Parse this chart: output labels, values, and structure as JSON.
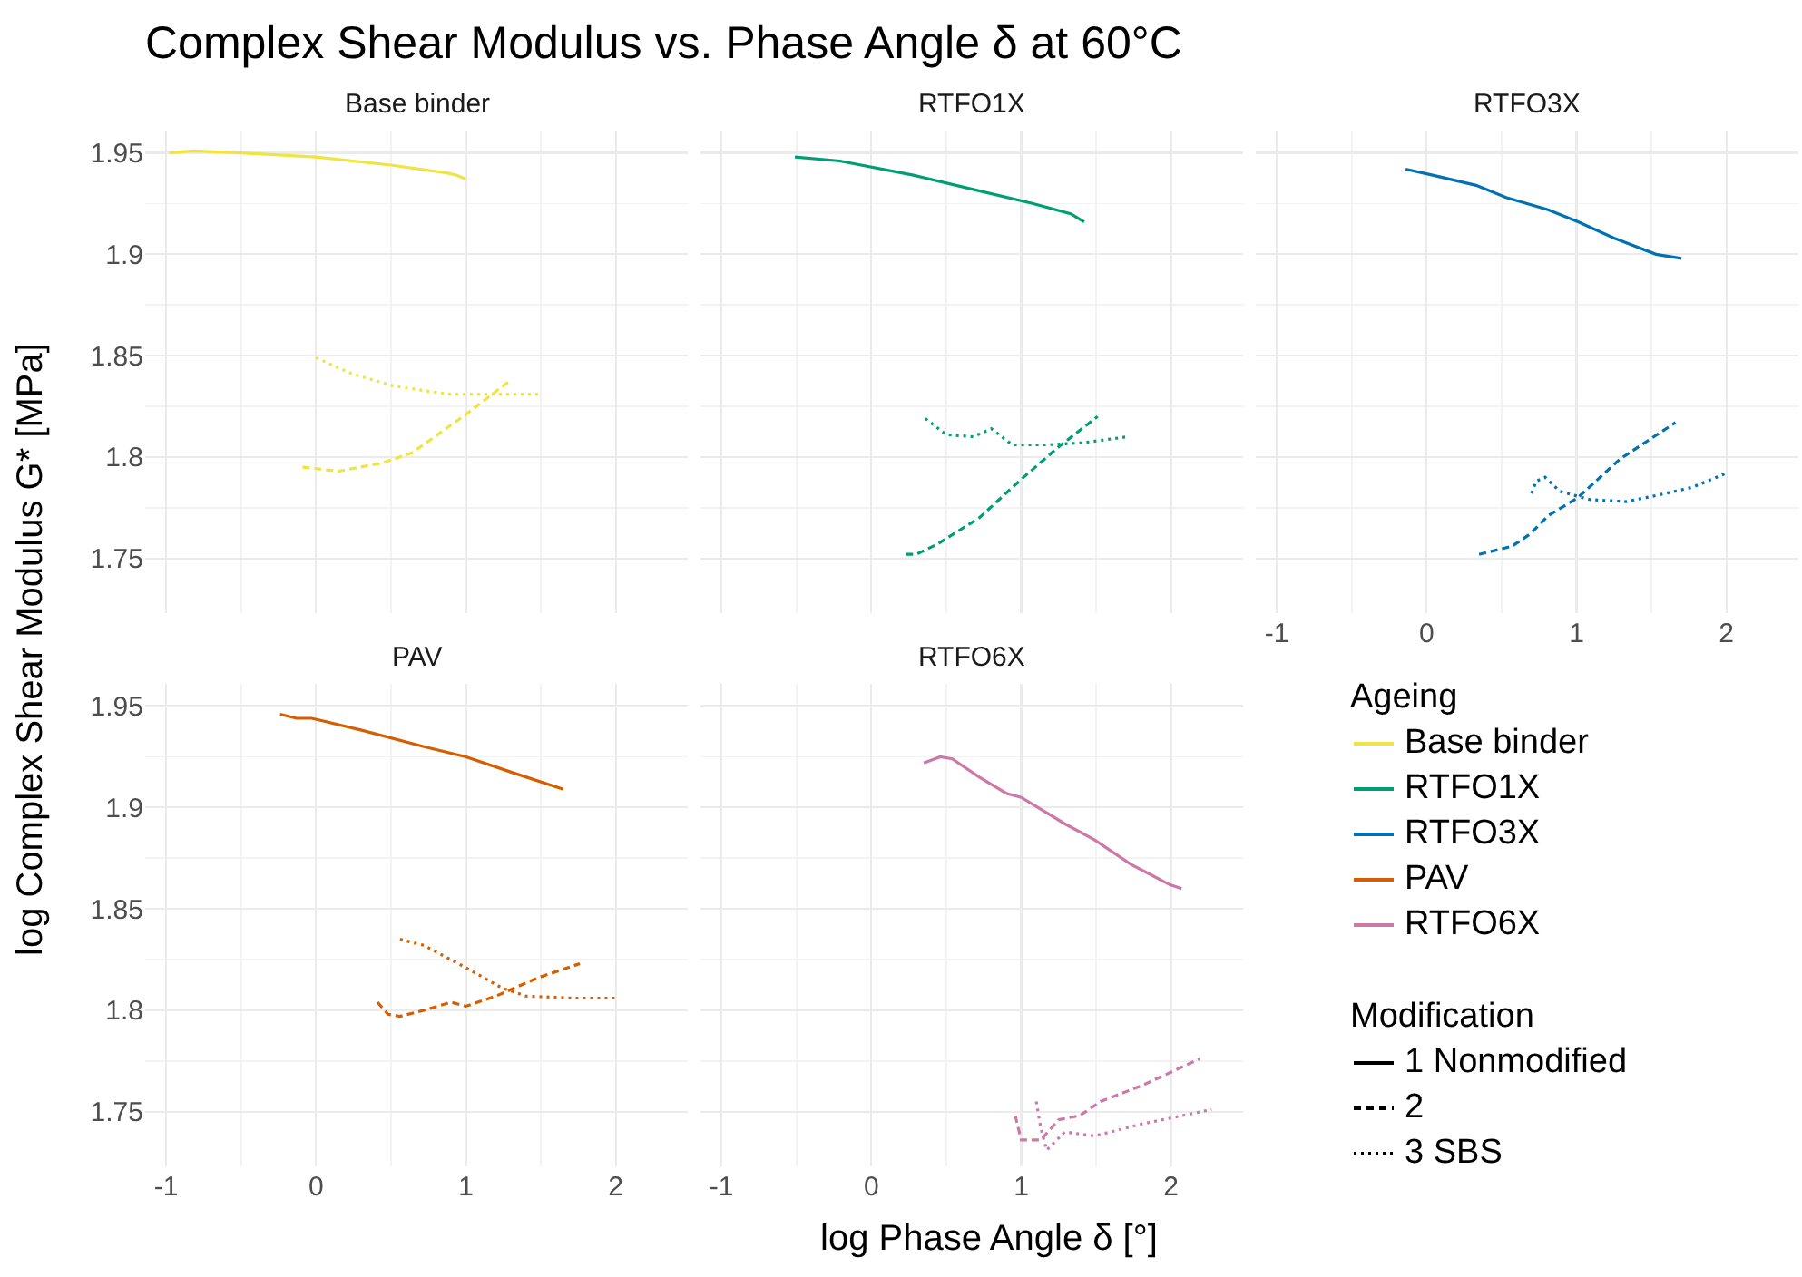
{
  "chart_data": [
    {
      "type": "line",
      "title": "Base binder",
      "xlabel": "log Phase Angle δ [°]",
      "ylabel": "log Complex Shear Modulus G* [MPa]",
      "annotations": [
        "Complex Shear Modulus vs. Phase Angle δ at 60°C"
      ],
      "xlim": [
        -1.14,
        2.48
      ],
      "ylim": [
        1.723,
        1.961
      ],
      "xticks": [
        -1,
        0,
        1,
        2
      ],
      "yticks": [
        1.75,
        1.8,
        1.85,
        1.9,
        1.95
      ],
      "grid": true,
      "tick_labels": "y",
      "series": [
        {
          "color": "#f0e442",
          "line_style": "solid",
          "x": [
            -0.98,
            -0.82,
            -0.5,
            0,
            0.5,
            0.88,
            0.94,
            1.0
          ],
          "values": [
            1.95,
            1.951,
            1.95,
            1.948,
            1.944,
            1.94,
            1.939,
            1.937
          ]
        },
        {
          "color": "#f0e442",
          "line_style": "dashed",
          "x": [
            -0.09,
            0.15,
            0.44,
            0.64,
            1.0,
            1.3
          ],
          "values": [
            1.795,
            1.793,
            1.797,
            1.802,
            1.821,
            1.838
          ]
        },
        {
          "color": "#f0e442",
          "line_style": "dotted",
          "x": [
            0,
            0.24,
            0.52,
            0.88,
            1.2,
            1.5
          ],
          "values": [
            1.849,
            1.841,
            1.835,
            1.831,
            1.831,
            1.831
          ]
        }
      ]
    },
    {
      "type": "line",
      "title": "RTFO1X",
      "xlim": [
        -1.14,
        2.48
      ],
      "ylim": [
        1.723,
        1.961
      ],
      "xticks": [
        -1,
        0,
        1,
        2
      ],
      "yticks": [
        1.75,
        1.8,
        1.85,
        1.9,
        1.95
      ],
      "grid": true,
      "tick_labels": false,
      "series": [
        {
          "color": "#009e73",
          "line_style": "solid",
          "x": [
            -0.51,
            -0.21,
            0.28,
            0.68,
            1.08,
            1.33,
            1.42
          ],
          "values": [
            1.948,
            1.946,
            1.939,
            1.932,
            1.925,
            1.92,
            1.916
          ]
        },
        {
          "color": "#009e73",
          "line_style": "dashed",
          "x": [
            0.23,
            0.3,
            0.44,
            0.72,
            1.0,
            1.25,
            1.51
          ],
          "values": [
            1.752,
            1.752,
            1.757,
            1.77,
            1.789,
            1.805,
            1.82
          ]
        },
        {
          "color": "#009e73",
          "line_style": "dotted",
          "x": [
            0.36,
            0.5,
            0.68,
            0.8,
            0.94,
            1.17,
            1.41,
            1.71
          ],
          "values": [
            1.819,
            1.811,
            1.81,
            1.814,
            1.806,
            1.806,
            1.807,
            1.81
          ]
        }
      ]
    },
    {
      "type": "line",
      "title": "RTFO3X",
      "xlim": [
        -1.14,
        2.48
      ],
      "ylim": [
        1.723,
        1.961
      ],
      "xticks": [
        -1,
        0,
        1,
        2
      ],
      "yticks": [
        1.75,
        1.8,
        1.85,
        1.9,
        1.95
      ],
      "grid": true,
      "tick_labels": "x",
      "series": [
        {
          "color": "#0072b2",
          "line_style": "solid",
          "x": [
            -0.14,
            0.04,
            0.33,
            0.53,
            0.81,
            1.01,
            1.25,
            1.53,
            1.7
          ],
          "values": [
            1.942,
            1.939,
            1.934,
            1.928,
            1.922,
            1.916,
            1.908,
            1.9,
            1.898
          ]
        },
        {
          "color": "#0072b2",
          "line_style": "dashed",
          "x": [
            0.35,
            0.57,
            0.69,
            0.81,
            1.01,
            1.29,
            1.66
          ],
          "values": [
            1.752,
            1.756,
            1.762,
            1.771,
            1.78,
            1.799,
            1.817
          ]
        },
        {
          "color": "#0072b2",
          "line_style": "dotted",
          "x": [
            0.7,
            0.73,
            0.79,
            0.89,
            1.09,
            1.33,
            1.53,
            1.77,
            2.0
          ],
          "values": [
            1.782,
            1.788,
            1.79,
            1.783,
            1.779,
            1.778,
            1.781,
            1.785,
            1.792
          ]
        }
      ]
    },
    {
      "type": "line",
      "title": "PAV",
      "xlim": [
        -1.14,
        2.48
      ],
      "ylim": [
        1.723,
        1.961
      ],
      "xticks": [
        -1,
        0,
        1,
        2
      ],
      "yticks": [
        1.75,
        1.8,
        1.85,
        1.9,
        1.95
      ],
      "grid": true,
      "series": [
        {
          "color": "#d55e00",
          "line_style": "solid",
          "x": [
            -0.24,
            -0.13,
            -0.03,
            0.03,
            0.31,
            0.72,
            1.0,
            1.32,
            1.65
          ],
          "values": [
            1.946,
            1.944,
            1.944,
            1.943,
            1.938,
            1.93,
            1.925,
            1.917,
            1.909
          ]
        },
        {
          "color": "#d55e00",
          "line_style": "dashed",
          "x": [
            0.41,
            0.48,
            0.56,
            0.72,
            0.9,
            1.0,
            1.2,
            1.48,
            1.76
          ],
          "values": [
            1.804,
            1.798,
            1.797,
            1.8,
            1.804,
            1.802,
            1.807,
            1.816,
            1.823
          ]
        },
        {
          "color": "#d55e00",
          "line_style": "dotted",
          "x": [
            0.56,
            0.72,
            1.0,
            1.24,
            1.4,
            1.72,
            2.0
          ],
          "values": [
            1.835,
            1.832,
            1.821,
            1.811,
            1.807,
            1.806,
            1.806
          ]
        }
      ]
    },
    {
      "type": "line",
      "title": "RTFO6X",
      "xlim": [
        -1.14,
        2.48
      ],
      "ylim": [
        1.723,
        1.961
      ],
      "xticks": [
        -1,
        0,
        1,
        2
      ],
      "yticks": [
        1.75,
        1.8,
        1.85,
        1.9,
        1.95
      ],
      "grid": true,
      "tick_labels": "x",
      "series": [
        {
          "color": "#cc79a7",
          "line_style": "solid",
          "x": [
            0.35,
            0.46,
            0.54,
            0.72,
            0.9,
            1.0,
            1.29,
            1.49,
            1.73,
            1.99,
            2.07
          ],
          "values": [
            1.922,
            1.925,
            1.924,
            1.915,
            1.907,
            1.905,
            1.892,
            1.884,
            1.872,
            1.862,
            1.86
          ]
        },
        {
          "color": "#cc79a7",
          "line_style": "dashed",
          "x": [
            0.96,
            1.0,
            1.13,
            1.25,
            1.39,
            1.53,
            1.81,
            2.19
          ],
          "values": [
            1.748,
            1.736,
            1.736,
            1.746,
            1.748,
            1.755,
            1.763,
            1.776
          ]
        },
        {
          "color": "#cc79a7",
          "line_style": "dotted",
          "x": [
            1.1,
            1.13,
            1.17,
            1.29,
            1.49,
            1.81,
            2.27
          ],
          "values": [
            1.755,
            1.742,
            1.731,
            1.74,
            1.738,
            1.744,
            1.751
          ]
        }
      ]
    },
    {
      "type": "other",
      "annotations": [
        "Ageing",
        "Base binder",
        "RTFO1X",
        "RTFO3X",
        "PAV",
        "RTFO6X",
        "Modification",
        "1 Nonmodified",
        "2",
        "3 SBS"
      ]
    }
  ]
}
